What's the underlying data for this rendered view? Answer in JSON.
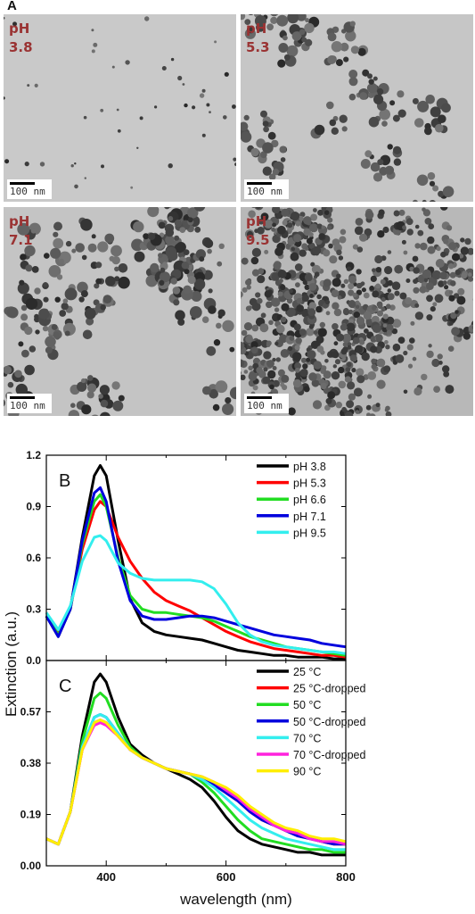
{
  "figure_label_a": "A",
  "tem_panels": [
    {
      "ph_word": "pH",
      "ph_value": "3.8",
      "scale_text": "100 nm"
    },
    {
      "ph_word": "pH",
      "ph_value": "5.3",
      "scale_text": "100 nm"
    },
    {
      "ph_word": "pH",
      "ph_value": "7.1",
      "scale_text": "100 nm"
    },
    {
      "ph_word": "pH",
      "ph_value": "9.5",
      "scale_text": "100 nm"
    }
  ],
  "chart_data": [
    {
      "type": "line",
      "panel_label": "B",
      "xlabel": "wavelength (nm)",
      "ylabel": "Extinction (a.u.)",
      "xlim": [
        300,
        800
      ],
      "ylim": [
        0,
        1.2
      ],
      "y_ticks": [
        "0.0",
        "0.3",
        "0.6",
        "0.9",
        "1.2"
      ],
      "legend_position": "top-right",
      "x": [
        300,
        320,
        340,
        360,
        380,
        390,
        400,
        420,
        440,
        460,
        480,
        500,
        520,
        540,
        560,
        580,
        600,
        620,
        640,
        660,
        680,
        700,
        720,
        740,
        760,
        780,
        800
      ],
      "series": [
        {
          "name": "pH  3.8",
          "color": "#000000",
          "values": [
            0.26,
            0.14,
            0.3,
            0.72,
            1.08,
            1.14,
            1.08,
            0.7,
            0.36,
            0.22,
            0.17,
            0.15,
            0.14,
            0.13,
            0.12,
            0.1,
            0.08,
            0.06,
            0.05,
            0.04,
            0.03,
            0.03,
            0.02,
            0.02,
            0.02,
            0.01,
            0.01
          ]
        },
        {
          "name": "pH  5.3",
          "color": "#ff0000",
          "values": [
            0.26,
            0.16,
            0.3,
            0.65,
            0.88,
            0.93,
            0.9,
            0.72,
            0.58,
            0.48,
            0.4,
            0.35,
            0.32,
            0.29,
            0.25,
            0.21,
            0.17,
            0.14,
            0.11,
            0.09,
            0.07,
            0.06,
            0.05,
            0.04,
            0.03,
            0.03,
            0.02
          ]
        },
        {
          "name": "pH  6.6",
          "color": "#22dd22",
          "values": [
            0.26,
            0.15,
            0.3,
            0.68,
            0.93,
            0.97,
            0.9,
            0.6,
            0.38,
            0.3,
            0.28,
            0.28,
            0.27,
            0.26,
            0.25,
            0.23,
            0.2,
            0.17,
            0.14,
            0.12,
            0.1,
            0.08,
            0.07,
            0.06,
            0.05,
            0.04,
            0.03
          ]
        },
        {
          "name": "pH  7.1",
          "color": "#0000dd",
          "values": [
            0.26,
            0.14,
            0.3,
            0.7,
            0.98,
            1.01,
            0.93,
            0.58,
            0.35,
            0.26,
            0.24,
            0.24,
            0.25,
            0.26,
            0.26,
            0.25,
            0.23,
            0.21,
            0.19,
            0.17,
            0.15,
            0.14,
            0.13,
            0.12,
            0.1,
            0.09,
            0.08
          ]
        },
        {
          "name": "pH  9.5",
          "color": "#33eeee",
          "values": [
            0.28,
            0.18,
            0.32,
            0.58,
            0.72,
            0.73,
            0.7,
            0.57,
            0.51,
            0.48,
            0.47,
            0.47,
            0.47,
            0.47,
            0.46,
            0.42,
            0.33,
            0.22,
            0.15,
            0.11,
            0.09,
            0.08,
            0.07,
            0.06,
            0.05,
            0.05,
            0.04
          ]
        }
      ]
    },
    {
      "type": "line",
      "panel_label": "C",
      "xlabel": "wavelength (nm)",
      "ylabel": "Extinction (a.u.)",
      "xlim": [
        300,
        800
      ],
      "ylim": [
        0,
        0.76
      ],
      "y_ticks": [
        "0.00",
        "0.19",
        "0.38",
        "0.57"
      ],
      "x_ticks": [
        "400",
        "600",
        "800"
      ],
      "legend_position": "top-right",
      "x": [
        300,
        320,
        340,
        360,
        380,
        390,
        400,
        420,
        440,
        460,
        480,
        500,
        520,
        540,
        560,
        580,
        600,
        620,
        640,
        660,
        680,
        700,
        720,
        740,
        760,
        780,
        800
      ],
      "series": [
        {
          "name": "25 °C",
          "color": "#000000",
          "values": [
            0.1,
            0.08,
            0.2,
            0.48,
            0.68,
            0.71,
            0.68,
            0.55,
            0.45,
            0.41,
            0.38,
            0.36,
            0.34,
            0.32,
            0.29,
            0.24,
            0.18,
            0.13,
            0.1,
            0.08,
            0.07,
            0.06,
            0.05,
            0.05,
            0.04,
            0.04,
            0.04
          ]
        },
        {
          "name": "25 °C-dropped",
          "color": "#ff0000",
          "values": [
            0.1,
            0.08,
            0.2,
            0.43,
            0.53,
            0.54,
            0.53,
            0.48,
            0.43,
            0.4,
            0.38,
            0.36,
            0.35,
            0.34,
            0.32,
            0.3,
            0.27,
            0.24,
            0.2,
            0.17,
            0.15,
            0.13,
            0.12,
            0.1,
            0.09,
            0.08,
            0.08
          ]
        },
        {
          "name": "50 °C",
          "color": "#22dd22",
          "values": [
            0.1,
            0.08,
            0.2,
            0.46,
            0.62,
            0.64,
            0.62,
            0.52,
            0.44,
            0.4,
            0.38,
            0.36,
            0.35,
            0.34,
            0.31,
            0.27,
            0.22,
            0.17,
            0.13,
            0.1,
            0.09,
            0.08,
            0.07,
            0.06,
            0.06,
            0.05,
            0.05
          ]
        },
        {
          "name": "50 °C-dropped",
          "color": "#0000dd",
          "values": [
            0.1,
            0.08,
            0.2,
            0.44,
            0.55,
            0.56,
            0.55,
            0.49,
            0.43,
            0.4,
            0.38,
            0.36,
            0.35,
            0.34,
            0.32,
            0.3,
            0.27,
            0.24,
            0.2,
            0.17,
            0.15,
            0.13,
            0.11,
            0.1,
            0.09,
            0.08,
            0.08
          ]
        },
        {
          "name": "70 °C",
          "color": "#33eeee",
          "values": [
            0.1,
            0.08,
            0.2,
            0.44,
            0.55,
            0.56,
            0.55,
            0.49,
            0.43,
            0.4,
            0.38,
            0.36,
            0.35,
            0.34,
            0.32,
            0.29,
            0.25,
            0.21,
            0.17,
            0.14,
            0.12,
            0.1,
            0.09,
            0.08,
            0.07,
            0.06,
            0.06
          ]
        },
        {
          "name": "70 °C-dropped",
          "color": "#ff22dd",
          "values": [
            0.1,
            0.08,
            0.2,
            0.43,
            0.52,
            0.53,
            0.52,
            0.48,
            0.43,
            0.4,
            0.38,
            0.36,
            0.35,
            0.34,
            0.33,
            0.31,
            0.28,
            0.25,
            0.21,
            0.18,
            0.15,
            0.13,
            0.12,
            0.1,
            0.09,
            0.09,
            0.08
          ]
        },
        {
          "name": "90 °C",
          "color": "#ffee00",
          "values": [
            0.1,
            0.08,
            0.2,
            0.43,
            0.53,
            0.54,
            0.53,
            0.48,
            0.43,
            0.4,
            0.38,
            0.36,
            0.35,
            0.34,
            0.33,
            0.31,
            0.29,
            0.26,
            0.22,
            0.19,
            0.16,
            0.14,
            0.13,
            0.11,
            0.1,
            0.1,
            0.09
          ]
        }
      ]
    }
  ]
}
